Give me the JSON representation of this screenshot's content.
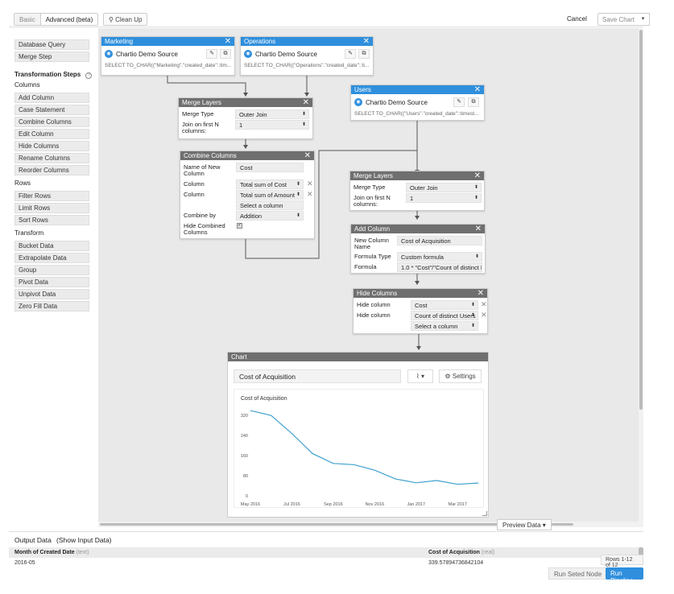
{
  "toolbar": {
    "tab_basic": "Basic",
    "tab_advanced": "Advanced (beta)",
    "cleanup": "Clean Up",
    "cancel": "Cancel",
    "save_chart": "Save Chart",
    "save_caret": "▾"
  },
  "sidebar": {
    "sources": [
      "Database Query",
      "Merge Step"
    ],
    "heading": "Transformation Steps",
    "help_icon": "?",
    "columns_label": "Columns",
    "columns": [
      "Add Column",
      "Case Statement",
      "Combine Columns",
      "Edit Column",
      "Hide Columns",
      "Rename Columns",
      "Reorder Columns"
    ],
    "rows_label": "Rows",
    "rows": [
      "Filter Rows",
      "Limit Rows",
      "Sort Rows"
    ],
    "transform_label": "Transform",
    "transform": [
      "Bucket Data",
      "Extrapolate Data",
      "Group",
      "Pivot Data",
      "Unpivot Data",
      "Zero Fill Data"
    ]
  },
  "nodes": {
    "close": "✕",
    "marketing": {
      "title": "Marketing",
      "source": "Chartio Demo Source",
      "sql": "SELECT TO_CHAR((\"Marketing\".\"created_date\"::tim..."
    },
    "operations": {
      "title": "Operations",
      "source": "Chartio Demo Source",
      "sql": "SELECT TO_CHAR((\"Operations\".\"created_date\"::ti..."
    },
    "users": {
      "title": "Users",
      "source": "Chartio Demo Source",
      "sql": "SELECT TO_CHAR((\"Users\".\"created_date\"::timest..."
    },
    "merge1": {
      "title": "Merge Layers",
      "merge_type_label": "Merge Type",
      "merge_type": "Outer Join",
      "join_label": "Join on first N columns:",
      "join_value": "1"
    },
    "combine": {
      "title": "Combine Columns",
      "name_label": "Name of New Column",
      "name_value": "Cost",
      "column_label": "Column",
      "column1": "Total sum of Cost",
      "column2": "Total sum of Amount",
      "column3": "Select a column",
      "combine_by_label": "Combine by",
      "combine_by": "Addition",
      "hide_label": "Hide Combined Columns",
      "hide_checked": "✓"
    },
    "merge2": {
      "title": "Merge Layers",
      "merge_type_label": "Merge Type",
      "merge_type": "Outer Join",
      "join_label": "Join on first N columns:",
      "join_value": "1"
    },
    "addcol": {
      "title": "Add Column",
      "name_label": "New Column Name",
      "name_value": "Cost of Acquisition",
      "formula_type_label": "Formula Type",
      "formula_type": "Custom formula",
      "formula_label": "Formula",
      "formula_value": "1.0 * \"Cost\"/\"Count of distinct I"
    },
    "hidecols": {
      "title": "Hide Columns",
      "hide_label": "Hide column",
      "col1": "Cost",
      "col2": "Count of distinct Users",
      "col3": "Select a column"
    }
  },
  "chart": {
    "header": "Chart",
    "title_value": "Cost of Acquisition",
    "type_btn": "⌇ ▾",
    "settings": "Settings",
    "settings_icon": "⚙"
  },
  "chart_data": {
    "type": "line",
    "title": "Cost of Acquisition",
    "x": [
      "May 2016",
      "Jun 2016",
      "Jul 2016",
      "Aug 2016",
      "Sep 2016",
      "Oct 2016",
      "Nov 2016",
      "Dec 2016",
      "Jan 2017",
      "Feb 2017",
      "Mar 2017",
      "Apr 2017"
    ],
    "xticks": [
      "May 2016",
      "Jul 2016",
      "Sep 2016",
      "Nov 2016",
      "Jan 2017",
      "Mar 2017"
    ],
    "series": [
      {
        "values": [
          339.58,
          320,
          248,
          168,
          129,
          124,
          102,
          67,
          52,
          61,
          46,
          51
        ]
      }
    ],
    "ylim": [
      0,
      340
    ],
    "yticks": [
      0,
      80,
      160,
      240,
      320
    ],
    "line_color": "#3fa0d0",
    "grid": false
  },
  "preview": {
    "label": "Preview Data ▾"
  },
  "output": {
    "label": "Output Data",
    "toggle": "(Show Input Data)",
    "col1": "Month of Created Date",
    "col1_type": "(text)",
    "col2": "Cost of Acquisition",
    "col2_type": "(real)",
    "cell1": "2016-05",
    "cell2": "339.57894736842104",
    "rows_badge": "Rows 1-12 of 12",
    "run_node": "Run Seted Node",
    "run_pipeline": "Run Pipeline"
  }
}
